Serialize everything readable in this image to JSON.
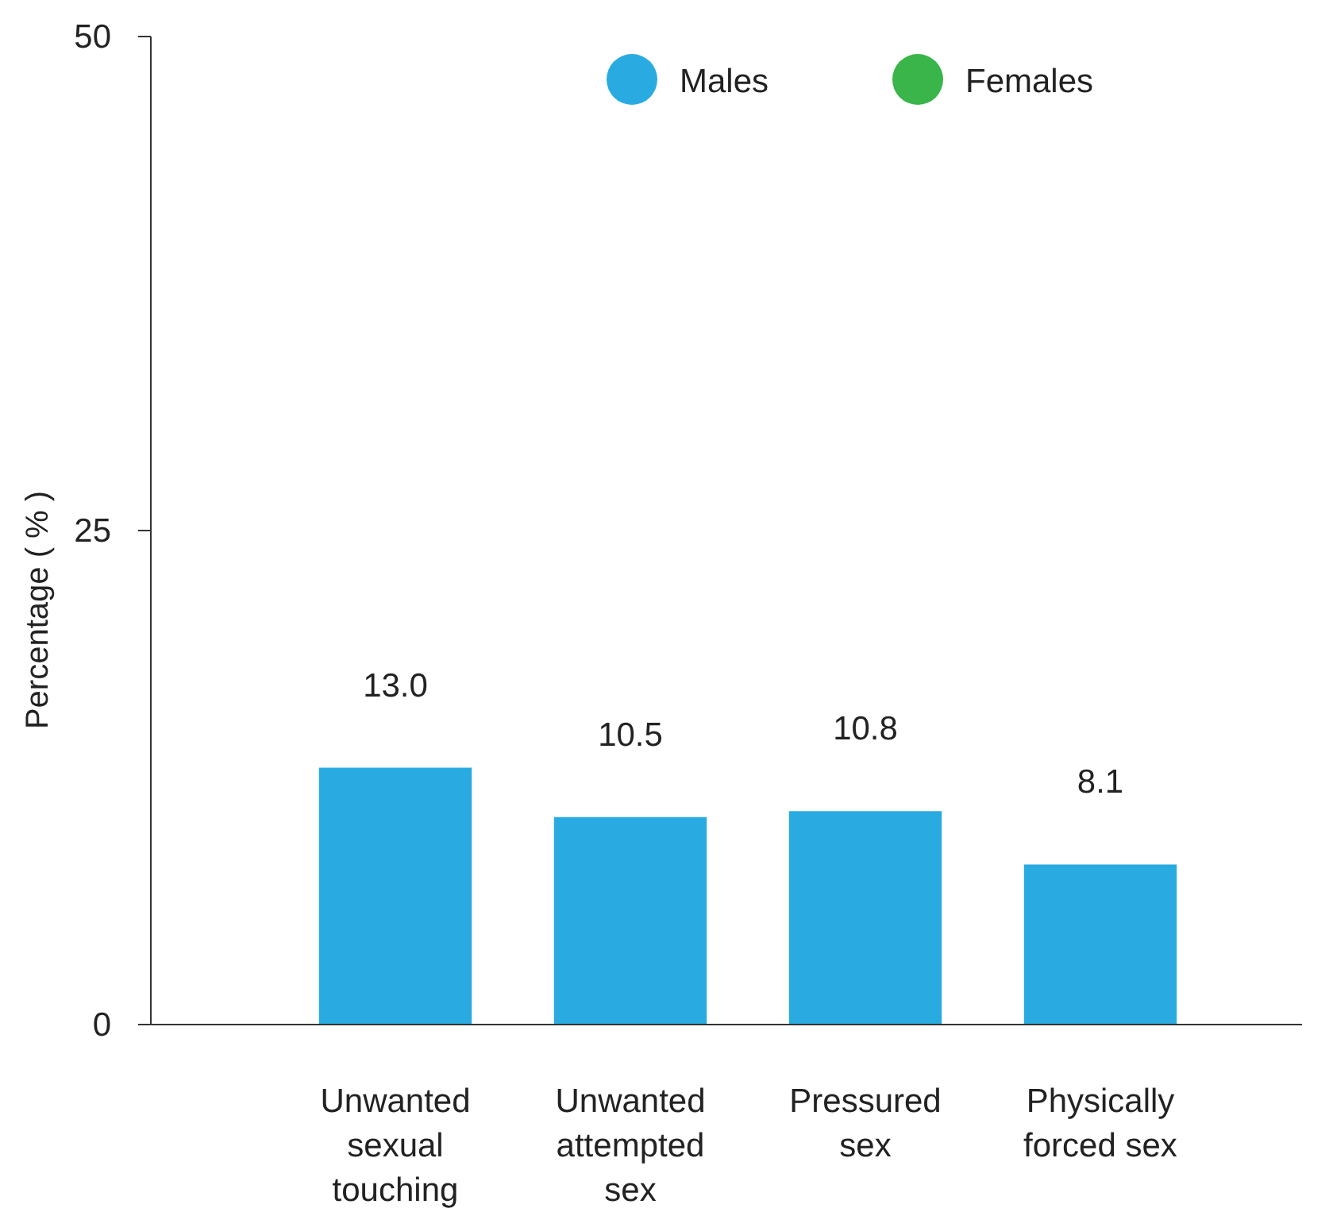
{
  "chart_data": {
    "type": "bar",
    "ylabel": "Percentage ( % )",
    "categories": [
      "Unwanted sexual touching",
      "Unwanted attempted sex",
      "Pressured sex",
      "Physically forced sex"
    ],
    "series": [
      {
        "name": "Males",
        "color": "#29abe2",
        "values": [
          13.0,
          10.5,
          10.8,
          8.1
        ],
        "value_labels": [
          "13.0",
          "10.5",
          "10.8",
          "8.1"
        ]
      },
      {
        "name": "Females",
        "color": "#39b54a",
        "values": [
          null,
          null,
          null,
          null
        ]
      }
    ],
    "ylim": [
      0,
      50
    ],
    "yticks": [
      0,
      25,
      50
    ],
    "grid": false,
    "legend": "top"
  }
}
